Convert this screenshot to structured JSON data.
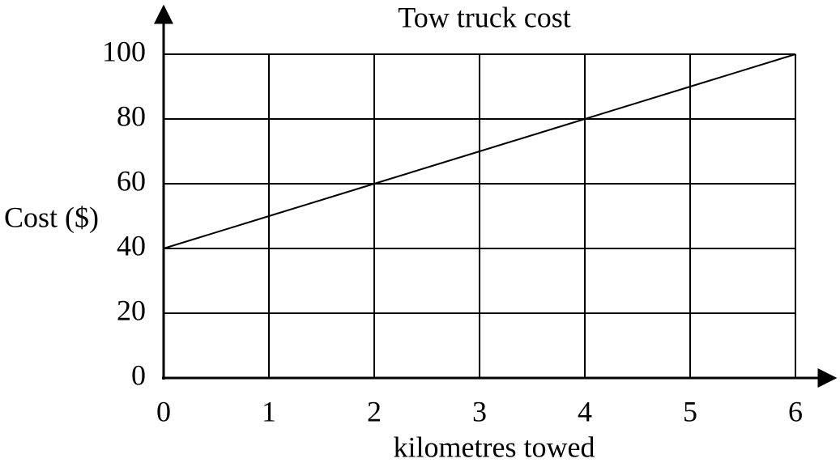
{
  "chart_data": {
    "type": "line",
    "title": "Tow truck cost",
    "x_label": "kilometres towed",
    "y_label": "Cost ($)",
    "x": [
      0,
      1,
      2,
      3,
      4,
      5,
      6
    ],
    "series": [
      {
        "name": "Cost",
        "color": "#000000",
        "values": [
          40,
          50,
          60,
          70,
          80,
          90,
          100
        ]
      }
    ],
    "xlim": [
      0,
      6
    ],
    "ylim": [
      0,
      100
    ],
    "xticks": [
      0,
      1,
      2,
      3,
      4,
      5,
      6
    ],
    "yticks": [
      0,
      20,
      40,
      60,
      80,
      100
    ],
    "grid": true
  }
}
